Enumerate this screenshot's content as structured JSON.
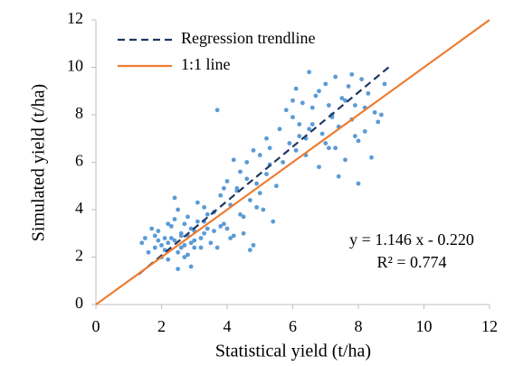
{
  "chart_data": {
    "type": "scatter",
    "xlabel": "Statistical yield (t/ha)",
    "ylabel": "Simulated yield (t/ha)",
    "xlim": [
      0,
      12
    ],
    "ylim": [
      0,
      12
    ],
    "xticks": [
      0,
      2,
      4,
      6,
      8,
      10,
      12
    ],
    "yticks": [
      0,
      2,
      4,
      6,
      8,
      10,
      12
    ],
    "grid": false,
    "legend": "top-left",
    "annotations": [
      "y = 1.146 x - 0.220",
      "R² = 0.774"
    ],
    "series": [
      {
        "type": "scatter",
        "color": "#5b9bd5",
        "x": [
          1.4,
          1.6,
          1.8,
          1.9,
          2.0,
          2.1,
          2.2,
          2.3,
          2.4,
          2.5,
          2.6,
          2.7,
          2.8,
          2.9,
          3.0,
          3.1,
          3.2,
          3.3,
          3.4,
          3.5,
          1.5,
          1.7,
          2.0,
          2.2,
          2.4,
          2.6,
          2.8,
          3.0,
          3.2,
          3.4,
          1.9,
          2.1,
          2.3,
          2.5,
          2.7,
          2.9,
          3.1,
          3.3,
          2.5,
          2.8,
          2.2,
          2.6,
          3.0,
          3.3,
          2.4,
          2.7,
          2.9,
          3.6,
          3.7,
          1.8,
          3.6,
          3.8,
          3.9,
          4.0,
          4.1,
          4.2,
          4.3,
          4.4,
          4.5,
          4.6,
          4.7,
          4.8,
          4.9,
          5.0,
          5.1,
          5.2,
          5.3,
          5.4,
          3.7,
          4.0,
          4.2,
          4.5,
          4.8,
          5.0,
          5.3,
          4.4,
          4.6,
          3.9,
          4.1,
          4.9,
          5.5,
          5.2,
          3.8,
          4.3,
          4.7,
          5.6,
          5.8,
          5.9,
          6.0,
          6.1,
          6.2,
          6.3,
          6.4,
          6.5,
          6.6,
          6.7,
          6.8,
          6.9,
          7.0,
          7.1,
          7.2,
          7.3,
          7.4,
          7.5,
          7.6,
          7.7,
          7.8,
          7.9,
          8.0,
          8.1,
          8.2,
          8.3,
          8.4,
          8.5,
          8.6,
          8.8,
          5.7,
          6.0,
          6.2,
          6.4,
          6.6,
          6.8,
          7.0,
          7.2,
          7.4,
          7.6,
          7.8,
          8.0,
          8.2,
          6.5,
          7.3,
          7.9,
          8.7,
          6.1,
          7.1
        ],
        "values": [
          2.6,
          2.2,
          2.9,
          3.1,
          2.5,
          2.8,
          1.9,
          3.3,
          2.7,
          2.2,
          3.0,
          2.5,
          2.9,
          1.6,
          2.4,
          3.5,
          2.8,
          4.1,
          3.2,
          2.6,
          2.8,
          3.2,
          2.0,
          2.6,
          3.6,
          2.9,
          2.1,
          3.1,
          2.4,
          3.8,
          2.7,
          2.3,
          2.8,
          4.0,
          3.4,
          2.6,
          4.3,
          3.0,
          1.5,
          3.7,
          3.4,
          2.4,
          2.7,
          3.5,
          4.5,
          2.0,
          3.2,
          3.1,
          2.4,
          2.4,
          3.9,
          4.6,
          3.4,
          5.2,
          4.2,
          2.9,
          4.8,
          5.6,
          3.7,
          6.0,
          4.4,
          2.5,
          5.1,
          6.3,
          4.0,
          5.5,
          6.6,
          3.5,
          8.2,
          3.2,
          6.1,
          3.0,
          6.5,
          4.7,
          5.9,
          3.8,
          5.3,
          4.9,
          2.8,
          4.1,
          5.0,
          7.0,
          3.3,
          4.9,
          2.3,
          7.4,
          8.2,
          6.8,
          7.9,
          9.1,
          7.1,
          8.5,
          6.3,
          9.8,
          7.6,
          8.8,
          5.8,
          7.2,
          9.3,
          6.6,
          8.0,
          9.6,
          7.5,
          8.7,
          6.1,
          9.2,
          7.8,
          8.4,
          6.9,
          9.5,
          7.3,
          8.9,
          6.2,
          8.1,
          7.7,
          9.3,
          6.0,
          8.6,
          7.6,
          7.0,
          8.3,
          9.0,
          6.8,
          7.9,
          5.4,
          8.6,
          9.7,
          5.1,
          8.3,
          7.4,
          6.6,
          7.1,
          8.0,
          6.5,
          8.4
        ]
      },
      {
        "type": "line",
        "name": "Regression trendline",
        "color": "#1f3864",
        "dashed": true,
        "x": [
          1.3,
          9.0
        ],
        "values": [
          1.27,
          10.09
        ]
      },
      {
        "type": "line",
        "name": "1:1 line",
        "color": "#ed7d31",
        "dashed": false,
        "x": [
          0,
          12
        ],
        "values": [
          0,
          12
        ]
      }
    ]
  }
}
